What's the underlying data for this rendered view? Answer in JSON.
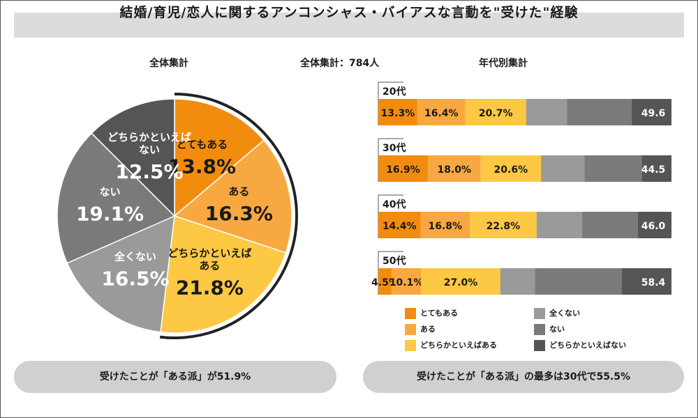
{
  "title": "結婚/育児/恋人に関するアンコンシャス・バイアスな言動を\"受けた\"経験",
  "left_heading": "全体集計",
  "middle_heading": "全体集計：784人",
  "right_heading": "年代別集計",
  "summary_left": "受けたことが「ある派」が51.9%",
  "summary_right": "受けたことが「ある派」の最多は30代で55.5%",
  "colors": {
    "とてもある": "#f28c0f",
    "ある": "#f8a840",
    "どちらかといえばある": "#fdc843",
    "全くない": "#9a9a9a",
    "ない": "#7a7a7a",
    "どちらかといえばない": "#555555"
  },
  "chart_data": [
    {
      "type": "pie",
      "title": "全体集計",
      "slices": [
        {
          "label": "とてもある",
          "value": 13.8,
          "value_label": "13.8%"
        },
        {
          "label": "ある",
          "value": 16.3,
          "value_label": "16.3%"
        },
        {
          "label": "どちらかといえばある",
          "value": 21.8,
          "value_label": "21.8%"
        },
        {
          "label": "全くない",
          "value": 16.5,
          "value_label": "16.5%"
        },
        {
          "label": "ない",
          "value": 19.1,
          "value_label": "19.1%"
        },
        {
          "label": "どちらかといえばない",
          "value": 12.5,
          "value_label": "12.5%"
        }
      ]
    },
    {
      "type": "bar",
      "orientation": "horizontal",
      "stacked": true,
      "title": "年代別集計",
      "categories": [
        "20代",
        "30代",
        "40代",
        "50代"
      ],
      "legend_position": "bottom",
      "series": [
        {
          "name": "とてもある",
          "values": [
            13.3,
            16.9,
            14.4,
            4.5
          ],
          "labels": [
            "13.3%",
            "16.9%",
            "14.4%",
            "4.5%"
          ]
        },
        {
          "name": "ある",
          "values": [
            16.4,
            18.0,
            16.8,
            10.1
          ],
          "labels": [
            "16.4%",
            "18.0%",
            "16.8%",
            "10.1%"
          ]
        },
        {
          "name": "どちらかといえばある",
          "values": [
            20.7,
            20.6,
            22.8,
            27.0
          ],
          "labels": [
            "20.7%",
            "20.6%",
            "22.8%",
            "27.0%"
          ]
        },
        {
          "name": "全くない",
          "values": [
            14.0,
            14.8,
            15.5,
            11.8
          ]
        },
        {
          "name": "ない",
          "values": [
            22.0,
            19.6,
            19.0,
            29.7
          ]
        },
        {
          "name": "どちらかといえばない",
          "values": [
            13.6,
            10.1,
            11.5,
            16.9
          ]
        }
      ],
      "segment_labels": [
        "49.6",
        "44.5",
        "46.0",
        "58.4"
      ]
    }
  ]
}
